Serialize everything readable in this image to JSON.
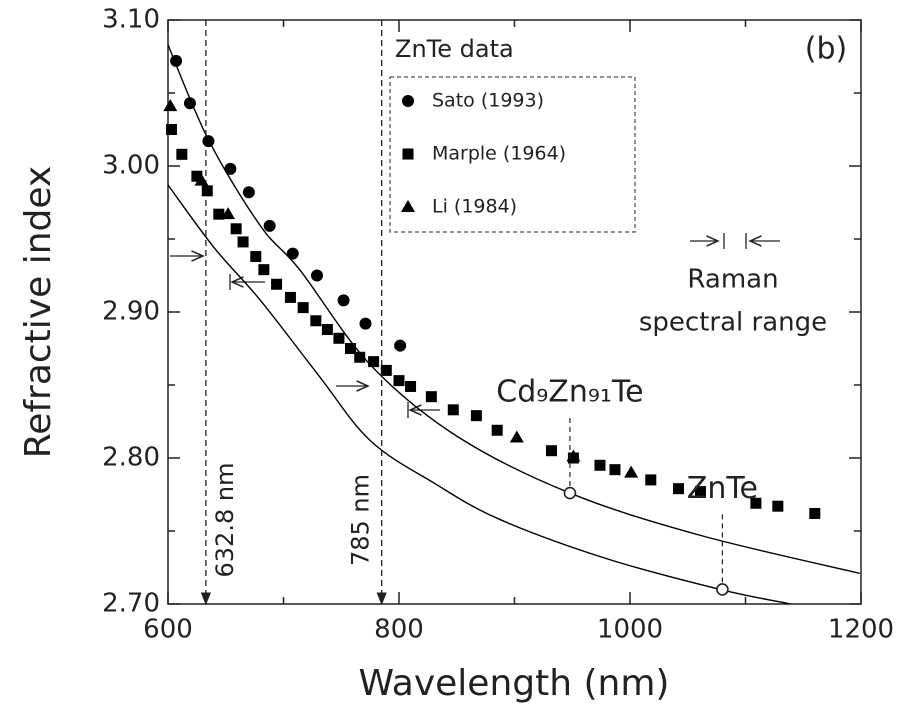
{
  "chart_data": {
    "type": "scatter",
    "panel_label": "(b)",
    "xlabel": "Wavelength (nm)",
    "ylabel": "Refractive index",
    "xlim": [
      600,
      1200
    ],
    "ylim": [
      2.7,
      3.1
    ],
    "xticks": [
      600,
      800,
      1000,
      1200
    ],
    "xminorticks": [
      700,
      900,
      1100
    ],
    "yticks": [
      {
        "value": 2.7,
        "label": "2.70"
      },
      {
        "value": 2.8,
        "label": "2.80"
      },
      {
        "value": 2.9,
        "label": "2.90"
      },
      {
        "value": 3.0,
        "label": "3.00"
      },
      {
        "value": 3.1,
        "label": "3.10"
      }
    ],
    "yminorticks": [
      2.75,
      2.85,
      2.95,
      3.05
    ],
    "legend_title": "ZnTe data",
    "series": [
      {
        "name": "Sato (1993)",
        "marker": "circle",
        "color": "#000000",
        "x": [
          607,
          619,
          635,
          654,
          670,
          688,
          708,
          729,
          752,
          771,
          801
        ],
        "values": [
          3.072,
          3.043,
          3.017,
          2.998,
          2.982,
          2.959,
          2.94,
          2.925,
          2.908,
          2.892,
          2.877
        ]
      },
      {
        "name": "Marple (1964)",
        "marker": "square",
        "color": "#000000",
        "x": [
          603,
          612,
          625,
          634,
          644,
          659,
          665,
          676,
          683,
          694,
          706,
          717,
          728,
          738,
          748,
          758,
          766,
          778,
          789,
          800,
          810,
          828,
          847,
          867,
          885,
          932,
          951,
          974,
          987,
          1018,
          1042,
          1061,
          1109,
          1128,
          1160
        ],
        "values": [
          3.025,
          3.008,
          2.993,
          2.983,
          2.967,
          2.957,
          2.948,
          2.938,
          2.929,
          2.919,
          2.91,
          2.903,
          2.894,
          2.888,
          2.882,
          2.875,
          2.869,
          2.866,
          2.86,
          2.853,
          2.849,
          2.842,
          2.833,
          2.829,
          2.819,
          2.805,
          2.8,
          2.795,
          2.792,
          2.785,
          2.779,
          2.777,
          2.769,
          2.767,
          2.762
        ]
      },
      {
        "name": "Li (1984)",
        "marker": "triangle",
        "color": "#000000",
        "x": [
          602,
          629,
          652,
          902,
          951,
          1001
        ],
        "values": [
          3.041,
          2.99,
          2.967,
          2.814,
          2.801,
          2.79
        ]
      }
    ],
    "fits": [
      {
        "color": "#000000",
        "x": [
          600,
          635,
          680,
          714,
          775,
          850,
          948,
          1061,
          1199
        ],
        "values": [
          3.083,
          3.018,
          2.959,
          2.929,
          2.864,
          2.815,
          2.776,
          2.747,
          2.721
        ]
      },
      {
        "color": "#000000",
        "x": [
          600,
          640,
          680,
          730,
          775,
          830,
          887,
          980,
          1078,
          1139
        ],
        "values": [
          2.987,
          2.944,
          2.908,
          2.857,
          2.812,
          2.783,
          2.758,
          2.731,
          2.71,
          2.7
        ]
      }
    ],
    "vlines": [
      {
        "x": 632.8,
        "label": "632.8 nm"
      },
      {
        "x": 785,
        "label": "785 nm"
      }
    ],
    "points": [
      {
        "x": 948,
        "y": 2.776,
        "label": "Cd₉Zn₉₁Te"
      },
      {
        "x": 1080,
        "y": 2.71,
        "label": "ZnTe"
      }
    ],
    "raman_note": [
      "Raman",
      "spectral range"
    ]
  }
}
